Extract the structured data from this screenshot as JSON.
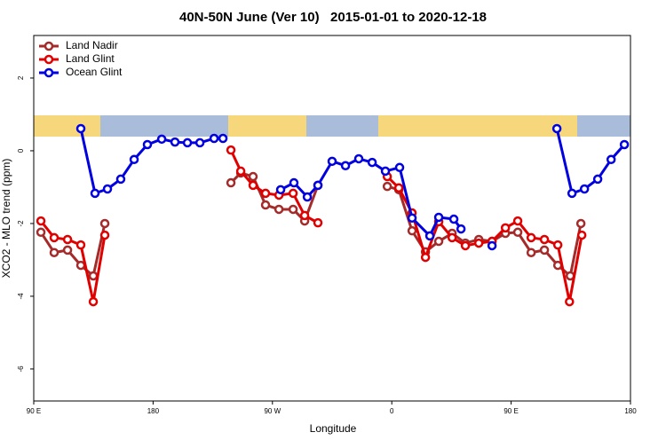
{
  "chart_data": {
    "type": "line",
    "title": "40N-50N June (Ver 10)   2015-01-01 to 2020-12-18",
    "x_label": "Longitude",
    "y_label": "XCO2 - MLO trend (ppm)",
    "xlim": [
      90,
      540
    ],
    "ylim": [
      -6.88,
      3.17
    ],
    "xticks": [
      {
        "value": 90,
        "label": "90 E"
      },
      180,
      {
        "value": 270,
        "label": "90 W"
      },
      {
        "value": 360,
        "label": "0"
      },
      {
        "value": 450,
        "label": "90 E"
      },
      {
        "value": 540,
        "label": "180"
      }
    ],
    "yticks": [
      2,
      0,
      -2,
      -4,
      -6
    ],
    "legend": "top-left",
    "series": [
      {
        "name": "Land Nadir",
        "color": "#a52a2a",
        "x": [
          95.4,
          105.4,
          115.5,
          125.5,
          134.9,
          143.6,
          null,
          238.7,
          246.1,
          255.4,
          264.8,
          274.9,
          285.6,
          294.3,
          304.3,
          null,
          356.6,
          365.3,
          375.3,
          385.4,
          395.4,
          405.5,
          415.5,
          425.6,
          435.6,
          445.7,
          455.0,
          465.1,
          475.1,
          485.2,
          494.6,
          502.6
        ],
        "values": [
          -2.24,
          -2.8,
          -2.73,
          -3.15,
          -3.44,
          -2.0,
          null,
          -0.88,
          -0.61,
          -0.71,
          -1.49,
          -1.61,
          -1.61,
          -1.93,
          -0.95,
          null,
          -0.98,
          -1.07,
          -2.2,
          -2.78,
          -2.49,
          -2.27,
          -2.54,
          -2.44,
          -2.49,
          -2.27,
          -2.24,
          -2.8,
          -2.73,
          -3.15,
          -3.44,
          -2.0
        ]
      },
      {
        "name": "Land Glint",
        "color": "#e00000",
        "x": [
          95.4,
          105.4,
          115.5,
          125.5,
          134.9,
          143.6,
          null,
          238.7,
          246.1,
          255.4,
          264.8,
          274.9,
          285.6,
          294.3,
          304.3,
          null,
          356.6,
          365.3,
          375.3,
          385.4,
          395.4,
          405.5,
          415.5,
          425.6,
          435.6,
          445.7,
          455.0,
          465.1,
          475.1,
          485.2,
          494.0,
          503.3
        ],
        "values": [
          -1.93,
          -2.39,
          -2.44,
          -2.59,
          -4.15,
          -2.32,
          null,
          0.02,
          -0.56,
          -0.95,
          -1.17,
          -1.22,
          -1.17,
          -1.78,
          -1.98,
          null,
          -0.71,
          -1.02,
          -1.71,
          -2.93,
          -1.95,
          -2.39,
          -2.61,
          -2.54,
          -2.49,
          -2.12,
          -1.93,
          -2.39,
          -2.44,
          -2.59,
          -4.15,
          -2.32
        ]
      },
      {
        "name": "Ocean Glint",
        "color": "#0000e0",
        "x": [
          125.5,
          136.2,
          145.6,
          155.6,
          165.7,
          175.7,
          186.5,
          196.5,
          205.9,
          215.3,
          226.0,
          232.7,
          null,
          276.2,
          286.2,
          296.3,
          304.3,
          315.0,
          325.1,
          335.1,
          345.2,
          355.2,
          365.9,
          375.3,
          388.7,
          395.4,
          406.8,
          412.2,
          null,
          435.6,
          null,
          484.5,
          495.9,
          505.3,
          515.3,
          525.4,
          535.4
        ],
        "values": [
          0.61,
          -1.17,
          -1.05,
          -0.78,
          -0.24,
          0.17,
          0.32,
          0.24,
          0.22,
          0.22,
          0.34,
          0.34,
          null,
          -1.07,
          -0.88,
          -1.27,
          -0.95,
          -0.29,
          -0.41,
          -0.22,
          -0.32,
          -0.56,
          -0.46,
          -1.85,
          -2.34,
          -1.83,
          -1.88,
          -2.15,
          null,
          -2.61,
          null,
          0.61,
          -1.17,
          -1.05,
          -0.78,
          -0.24,
          0.17
        ]
      }
    ]
  }
}
